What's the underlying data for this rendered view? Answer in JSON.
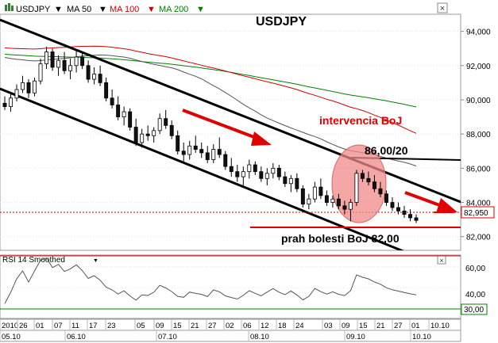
{
  "toolbar": {
    "symbol": "USDJPY",
    "ma1": "MA 50",
    "ma2": "MA 100",
    "ma3": "MA 200",
    "dropdown_glyph": "▼",
    "close_glyph": "×",
    "colors": {
      "ma50": "#000000",
      "ma100": "#cc0000",
      "ma200": "#008000"
    }
  },
  "main_chart": {
    "title": "USDJPY",
    "price_axis": [
      "94,000",
      "92,000",
      "90,000",
      "88,000",
      "86,000",
      "84,000",
      "82,000"
    ],
    "current_price": "82,950",
    "annotations": {
      "intervention": "intervencia BoJ",
      "level": "86,00/20",
      "pain": "prah bolesti BoJ 82,00"
    }
  },
  "rsi_panel": {
    "label": "RSI 14 Smoothed",
    "axis": [
      "60,00",
      "40,00"
    ],
    "current": "30,00"
  },
  "x_axis": {
    "days": [
      "2010",
      "26",
      "01",
      "07",
      "11",
      "17",
      "23",
      "05",
      "09",
      "15",
      "21",
      "27",
      "02",
      "06",
      "12",
      "18",
      "24",
      "03",
      "09",
      "15",
      "21",
      "27",
      "01",
      "10.10"
    ],
    "months": [
      "05.10",
      "06.10",
      "07.10",
      "08.10",
      "09.10",
      "10.10"
    ]
  },
  "chart_data": {
    "type": "candlestick",
    "title": "USDJPY",
    "ylim": [
      81.2,
      95.0
    ],
    "series": [
      {
        "name": "MA 50",
        "color": "#000000"
      },
      {
        "name": "MA 100",
        "color": "#cc0000"
      },
      {
        "name": "MA 200",
        "color": "#008000"
      }
    ],
    "candles": [
      [
        89.8,
        90.2,
        89.4,
        89.6
      ],
      [
        89.6,
        90.4,
        89.3,
        90.1
      ],
      [
        90.1,
        90.9,
        89.9,
        90.6
      ],
      [
        90.6,
        91.4,
        90.4,
        91.0
      ],
      [
        91.0,
        91.2,
        90.1,
        90.4
      ],
      [
        90.4,
        91.3,
        90.2,
        91.1
      ],
      [
        91.1,
        92.4,
        90.9,
        92.1
      ],
      [
        92.1,
        93.1,
        91.8,
        92.8
      ],
      [
        92.8,
        93.0,
        91.7,
        91.9
      ],
      [
        91.9,
        92.6,
        91.4,
        92.3
      ],
      [
        92.3,
        92.8,
        91.5,
        91.7
      ],
      [
        91.7,
        92.4,
        91.2,
        92.0
      ],
      [
        92.0,
        92.9,
        91.6,
        92.5
      ],
      [
        92.5,
        92.8,
        91.8,
        92.0
      ],
      [
        92.0,
        92.3,
        91.0,
        91.2
      ],
      [
        91.2,
        91.9,
        90.9,
        91.5
      ],
      [
        91.5,
        92.0,
        90.8,
        91.0
      ],
      [
        91.0,
        91.3,
        89.9,
        90.1
      ],
      [
        90.1,
        90.6,
        89.5,
        89.7
      ],
      [
        89.7,
        90.2,
        88.8,
        89.0
      ],
      [
        89.0,
        89.6,
        88.5,
        89.3
      ],
      [
        89.3,
        89.5,
        88.2,
        88.4
      ],
      [
        88.4,
        88.9,
        87.3,
        87.5
      ],
      [
        87.5,
        88.3,
        87.2,
        88.0
      ],
      [
        88.0,
        88.5,
        87.6,
        87.9
      ],
      [
        87.9,
        88.4,
        87.5,
        88.2
      ],
      [
        88.2,
        89.2,
        88.0,
        88.9
      ],
      [
        88.9,
        89.4,
        88.3,
        88.5
      ],
      [
        88.5,
        88.8,
        87.7,
        87.9
      ],
      [
        87.9,
        88.2,
        86.8,
        87.0
      ],
      [
        87.0,
        87.5,
        86.4,
        86.8
      ],
      [
        86.8,
        87.6,
        86.5,
        87.3
      ],
      [
        87.3,
        87.9,
        86.9,
        87.1
      ],
      [
        87.1,
        87.5,
        86.6,
        86.9
      ],
      [
        86.9,
        87.3,
        86.3,
        86.5
      ],
      [
        86.5,
        87.4,
        86.3,
        87.1
      ],
      [
        87.1,
        87.8,
        86.6,
        86.8
      ],
      [
        86.8,
        87.0,
        85.9,
        86.1
      ],
      [
        86.1,
        86.6,
        85.5,
        85.8
      ],
      [
        85.8,
        86.2,
        85.2,
        85.5
      ],
      [
        85.5,
        86.1,
        85.0,
        85.8
      ],
      [
        85.8,
        86.5,
        85.4,
        86.2
      ],
      [
        86.2,
        86.4,
        85.6,
        85.8
      ],
      [
        85.8,
        86.1,
        85.2,
        85.4
      ],
      [
        85.4,
        86.0,
        85.0,
        85.7
      ],
      [
        85.7,
        86.3,
        85.4,
        86.0
      ],
      [
        86.0,
        86.2,
        85.3,
        85.5
      ],
      [
        85.5,
        85.8,
        84.9,
        85.1
      ],
      [
        85.1,
        85.6,
        84.6,
        85.4
      ],
      [
        85.4,
        85.7,
        84.6,
        84.8
      ],
      [
        84.8,
        85.0,
        83.7,
        83.9
      ],
      [
        83.9,
        84.5,
        83.6,
        84.2
      ],
      [
        84.2,
        85.2,
        84.0,
        84.9
      ],
      [
        84.9,
        85.4,
        84.2,
        84.4
      ],
      [
        84.4,
        84.7,
        83.8,
        84.0
      ],
      [
        84.0,
        84.4,
        83.7,
        84.2
      ],
      [
        84.2,
        84.5,
        83.6,
        83.8
      ],
      [
        83.8,
        84.1,
        83.3,
        83.6
      ],
      [
        83.6,
        84.2,
        82.9,
        84.0
      ],
      [
        84.0,
        85.9,
        83.8,
        85.7
      ],
      [
        85.7,
        85.9,
        85.2,
        85.4
      ],
      [
        85.4,
        85.8,
        85.0,
        85.2
      ],
      [
        85.2,
        85.6,
        84.6,
        84.8
      ],
      [
        84.8,
        85.2,
        84.3,
        84.5
      ],
      [
        84.5,
        84.7,
        83.8,
        84.0
      ],
      [
        84.0,
        84.3,
        83.5,
        83.7
      ],
      [
        83.7,
        84.0,
        83.3,
        83.5
      ],
      [
        83.5,
        83.8,
        83.1,
        83.3
      ],
      [
        83.3,
        83.6,
        82.9,
        83.1
      ],
      [
        83.1,
        83.3,
        82.8,
        82.95
      ]
    ],
    "rsi": {
      "name": "RSI 14 Smoothed",
      "ylim": [
        20,
        70
      ],
      "levels": [
        30,
        70
      ]
    }
  }
}
